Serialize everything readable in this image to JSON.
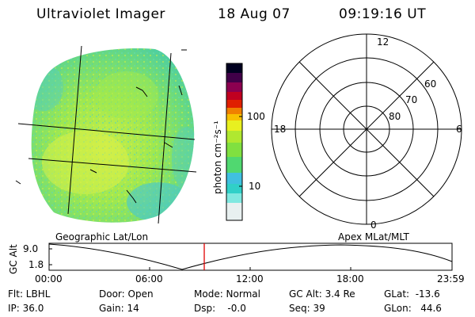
{
  "header": {
    "instrument": "Ultraviolet Imager",
    "date": "18 Aug 07",
    "time": "09:19:16 UT"
  },
  "colorbar": {
    "unit_label": "photon cm⁻²s⁻¹",
    "ticks": [
      "100",
      "10"
    ],
    "scale": "log",
    "colors": [
      "#e8f0f0",
      "#80e8e0",
      "#30d0c8",
      "#40c0e0",
      "#50d870",
      "#80e040",
      "#b0e830",
      "#e8f020",
      "#f8c000",
      "#f08000",
      "#e02000",
      "#c00020",
      "#8b0050",
      "#400048",
      "#000020"
    ]
  },
  "image_panel": {
    "label": "Geographic Lat/Lon"
  },
  "polar_panel": {
    "label": "Apex MLat/MLT",
    "mlt_labels": {
      "top": "12",
      "left": "18",
      "right": "6",
      "bottom": "0"
    },
    "lat_labels": [
      "60",
      "70",
      "80"
    ]
  },
  "gc_alt_plot": {
    "ylabel": "GC Alt",
    "yticks": [
      "9.0",
      "1.8"
    ],
    "xticks": [
      "00:00",
      "06:00",
      "12:00",
      "18:00",
      "23:59"
    ],
    "marker_time": "09:19",
    "marker_color": "#e00000"
  },
  "status": {
    "filter": "Flt: LBHL",
    "ip": "IP: 36.0",
    "door": "Door: Open",
    "gain": "Gain: 14",
    "mode": "Mode: Normal",
    "dsp": "Dsp:    -0.0",
    "gc_alt": "GC Alt: 3.4 Re",
    "seq": "Seq: 39",
    "glat": "GLat:  -13.6",
    "glon": "GLon:   44.6"
  }
}
